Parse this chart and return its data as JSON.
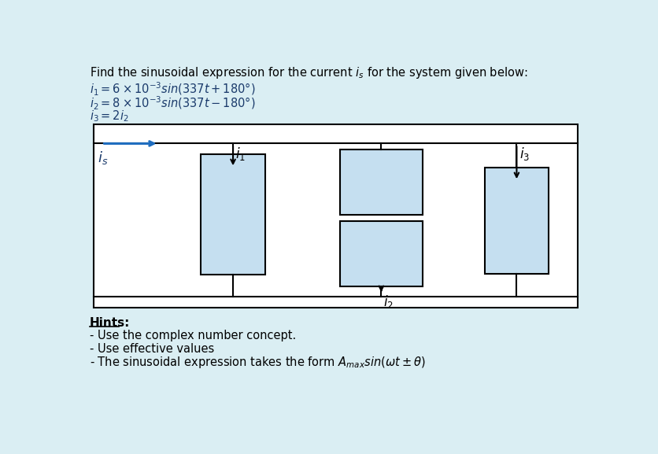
{
  "bg_color": "#daeef3",
  "diagram_bg": "#ffffff",
  "box_fill": "#c5dff0",
  "box_edge": "#000000",
  "title_text": "Find the sinusoidal expression for the current $i_s$ for the system given below:",
  "eq1": "$i_1 = 6 \\times 10^{-3}\\mathit{sin}(337t + 180°)$",
  "eq2": "$i_2 = 8 \\times 10^{-3}\\mathit{sin}(337t - 180°)$",
  "eq3": "$i_3 = 2i_2$",
  "hints_title": "Hints:",
  "hint1": "- Use the complex number concept.",
  "hint2": "- Use effective values",
  "hint3": "- The sinusoidal expression takes the form $A_{max}\\mathit{sin}(\\omega t \\pm \\theta)$",
  "arrow_color": "#1f6dbf",
  "text_color": "#1a3a6b"
}
